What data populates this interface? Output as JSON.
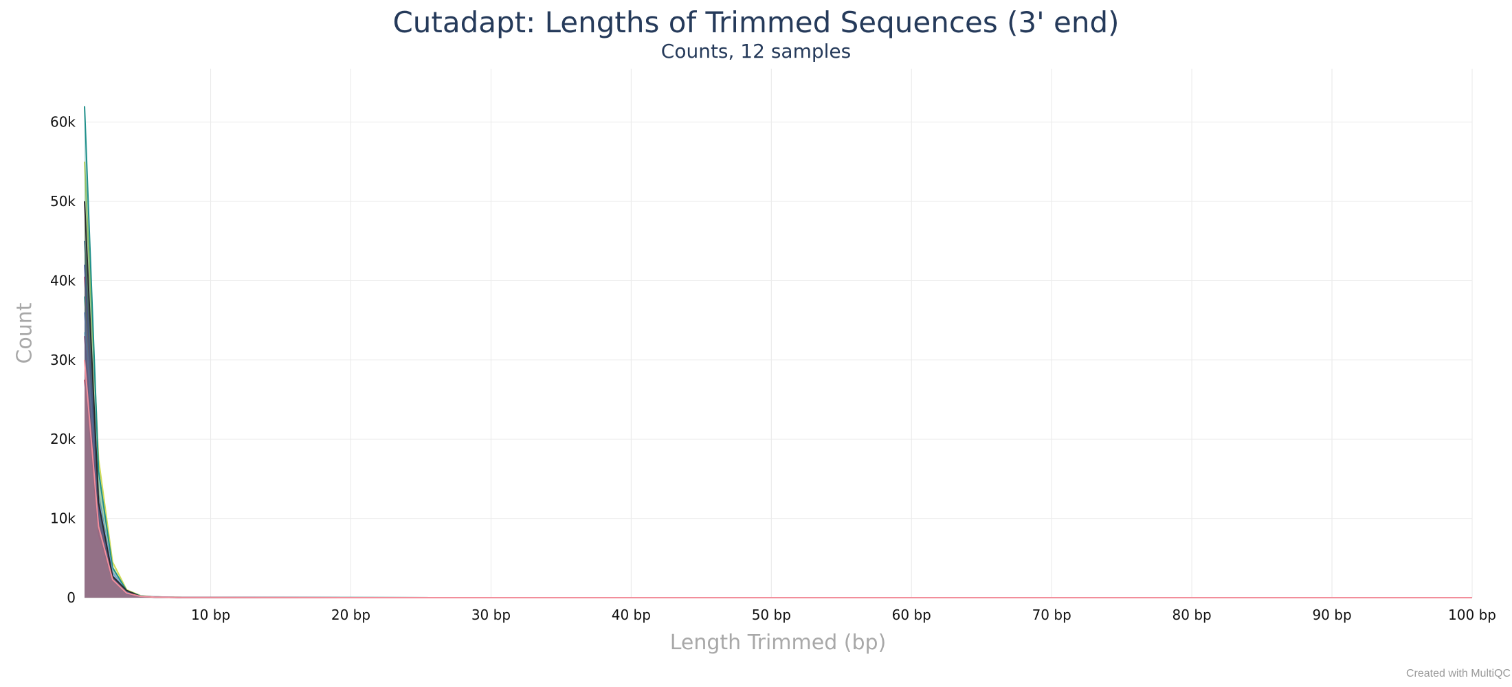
{
  "chart_data": {
    "type": "line",
    "title": "Cutadapt: Lengths of Trimmed Sequences (3' end)",
    "subtitle": "Counts, 12 samples",
    "xlabel": "Length Trimmed (bp)",
    "ylabel": "Count",
    "xlim": [
      1,
      100
    ],
    "ylim": [
      0,
      65000
    ],
    "grid": true,
    "x_ticks": [
      {
        "value": 10,
        "label": "10 bp"
      },
      {
        "value": 20,
        "label": "20 bp"
      },
      {
        "value": 30,
        "label": "30 bp"
      },
      {
        "value": 40,
        "label": "40 bp"
      },
      {
        "value": 50,
        "label": "50 bp"
      },
      {
        "value": 60,
        "label": "60 bp"
      },
      {
        "value": 70,
        "label": "70 bp"
      },
      {
        "value": 80,
        "label": "80 bp"
      },
      {
        "value": 90,
        "label": "90 bp"
      },
      {
        "value": 100,
        "label": "100 bp"
      }
    ],
    "y_ticks": [
      {
        "value": 0,
        "label": "0"
      },
      {
        "value": 10000,
        "label": "10k"
      },
      {
        "value": 20000,
        "label": "20k"
      },
      {
        "value": 30000,
        "label": "30k"
      },
      {
        "value": 40000,
        "label": "40k"
      },
      {
        "value": 50000,
        "label": "50k"
      },
      {
        "value": 60000,
        "label": "60k"
      }
    ],
    "x": [
      1,
      2,
      3,
      4,
      5,
      6,
      7,
      8,
      9,
      10,
      20,
      30,
      40,
      50,
      60,
      70,
      80,
      90,
      97,
      100
    ],
    "series": [
      {
        "color": "#4e79a7",
        "values": [
          45000,
          13000,
          3000,
          700,
          200,
          100,
          60,
          40,
          30,
          20,
          5,
          3,
          2,
          1,
          1,
          1,
          1,
          1,
          1,
          0
        ]
      },
      {
        "color": "#3cb4b4",
        "values": [
          38000,
          11000,
          2800,
          650,
          180,
          90,
          50,
          35,
          25,
          18,
          5,
          3,
          2,
          1,
          1,
          1,
          1,
          1,
          1,
          1
        ]
      },
      {
        "color": "#e05a79",
        "values": [
          40500,
          9500,
          2400,
          600,
          170,
          85,
          50,
          30,
          22,
          15,
          4,
          2,
          1,
          1,
          1,
          1,
          1,
          1,
          1,
          0
        ]
      },
      {
        "color": "#d0db55",
        "values": [
          55000,
          17500,
          4500,
          1000,
          250,
          120,
          70,
          45,
          30,
          20,
          5,
          3,
          2,
          1,
          1,
          1,
          1,
          1,
          1,
          0
        ]
      },
      {
        "color": "#1f8f8a",
        "values": [
          62000,
          16000,
          3800,
          900,
          220,
          110,
          60,
          40,
          28,
          20,
          5,
          3,
          2,
          1,
          1,
          1,
          1,
          1,
          1,
          0
        ]
      },
      {
        "color": "#8fd3e0",
        "values": [
          33500,
          12000,
          3000,
          700,
          190,
          95,
          55,
          35,
          25,
          17,
          4,
          2,
          1,
          1,
          1,
          1,
          1,
          1,
          1,
          1
        ]
      },
      {
        "color": "#c7425d",
        "values": [
          27500,
          8000,
          2200,
          550,
          160,
          80,
          45,
          30,
          20,
          14,
          4,
          2,
          1,
          1,
          1,
          1,
          1,
          1,
          1,
          0
        ]
      },
      {
        "color": "#a05c8c",
        "values": [
          33000,
          10000,
          2600,
          620,
          170,
          85,
          50,
          32,
          22,
          15,
          4,
          2,
          1,
          1,
          1,
          1,
          1,
          1,
          1,
          0
        ]
      },
      {
        "color": "#7ea0d4",
        "values": [
          36000,
          12500,
          3200,
          720,
          200,
          100,
          55,
          36,
          26,
          18,
          5,
          3,
          2,
          1,
          1,
          1,
          1,
          1,
          1,
          0
        ]
      },
      {
        "color": "#5a6fb0",
        "values": [
          42000,
          11500,
          2500,
          500,
          150,
          80,
          45,
          30,
          20,
          14,
          4,
          2,
          1,
          1,
          1,
          1,
          1,
          1,
          1,
          0
        ]
      },
      {
        "color": "#2b2b2b",
        "values": [
          50000,
          12000,
          2700,
          900,
          150,
          70,
          40,
          28,
          20,
          14,
          3,
          2,
          1,
          1,
          1,
          1,
          1,
          1,
          1,
          0
        ]
      },
      {
        "color": "#f28e9b",
        "values": [
          30000,
          9000,
          2300,
          580,
          165,
          82,
          48,
          30,
          21,
          15,
          4,
          2,
          1,
          1,
          1,
          1,
          1,
          1,
          1,
          0
        ]
      }
    ]
  },
  "footer": {
    "credit": "Created with MultiQC"
  }
}
